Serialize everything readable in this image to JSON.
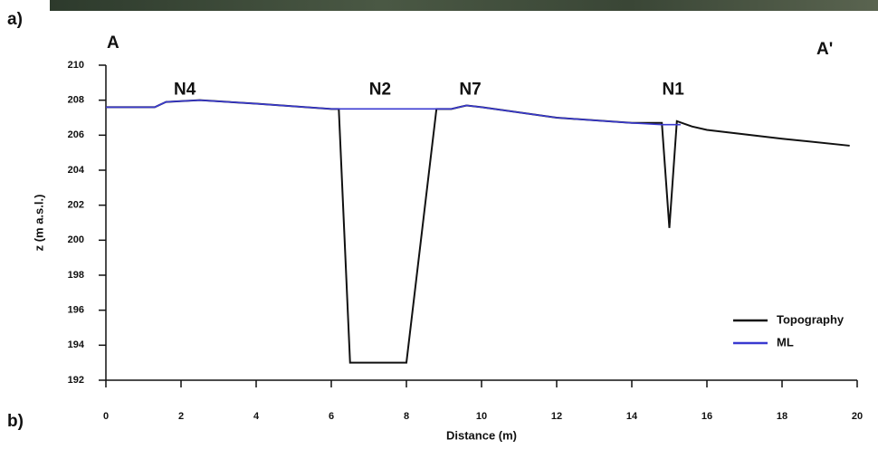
{
  "chart_data": {
    "type": "line",
    "panel_labels": [
      "a)",
      "b)"
    ],
    "section_labels": [
      "A",
      "A'"
    ],
    "x_label": "Distance (m)",
    "y_label": "z (m a.s.l.)",
    "xlim": [
      0,
      20
    ],
    "xticks": [
      0,
      2,
      4,
      6,
      8,
      10,
      12,
      14,
      16,
      18,
      20
    ],
    "ylim": [
      192,
      210
    ],
    "yticks": [
      192,
      194,
      196,
      198,
      200,
      202,
      204,
      206,
      208,
      210
    ],
    "legend": "lower right",
    "annotations": [
      {
        "text": "N4",
        "x": 2.1,
        "y": 209
      },
      {
        "text": "N2",
        "x": 7.3,
        "y": 209
      },
      {
        "text": "N7",
        "x": 9.7,
        "y": 209
      },
      {
        "text": "N1",
        "x": 15.1,
        "y": 209
      }
    ],
    "series": [
      {
        "name": "Topography",
        "color": "#111111",
        "x": [
          0,
          1.3,
          1.6,
          2.5,
          4,
          6,
          6.2,
          6.5,
          8,
          8.8,
          9.2,
          9.6,
          10,
          12,
          14,
          14.8,
          15,
          15.2,
          15.6,
          16,
          18,
          19.8
        ],
        "values": [
          207.6,
          207.6,
          207.9,
          208.0,
          207.8,
          207.5,
          207.5,
          193,
          193,
          207.5,
          207.5,
          207.7,
          207.6,
          207.0,
          206.7,
          206.7,
          200.7,
          206.8,
          206.5,
          206.3,
          205.8,
          205.4
        ]
      },
      {
        "name": "ML",
        "color": "#3a3ad0",
        "x": [
          0,
          1.3,
          1.6,
          2.5,
          4,
          6,
          6.2,
          8.8,
          9.2,
          9.6,
          10,
          12,
          14,
          14.8,
          15.3
        ],
        "values": [
          207.6,
          207.6,
          207.9,
          208.0,
          207.8,
          207.5,
          207.5,
          207.5,
          207.5,
          207.7,
          207.6,
          207.0,
          206.7,
          206.6,
          206.6
        ]
      }
    ]
  }
}
